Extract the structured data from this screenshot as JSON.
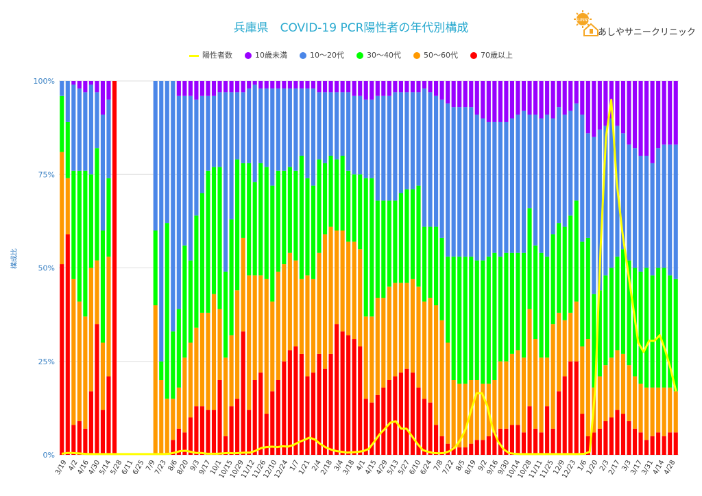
{
  "title": "兵庫県　COVID-19 PCR陽性者の年代別構成",
  "logo": {
    "badge_text": "SUNNY",
    "name": "あしやサニークリニック"
  },
  "legend": [
    {
      "name": "陽性者数",
      "color": "#ffff00",
      "kind": "line"
    },
    {
      "name": "10歳未満",
      "color": "#9900ff",
      "kind": "dot"
    },
    {
      "name": "10〜20代",
      "color": "#4a86e8",
      "kind": "dot"
    },
    {
      "name": "30〜40代",
      "color": "#00ff00",
      "kind": "dot"
    },
    {
      "name": "50〜60代",
      "color": "#ff9900",
      "kind": "dot"
    },
    {
      "name": "70歳以上",
      "color": "#ff0000",
      "kind": "dot"
    }
  ],
  "chart_data": {
    "type": "bar",
    "stacked": true,
    "ylabel": "構成比",
    "y_ticks": [
      "0%",
      "25%",
      "50%",
      "75%",
      "100%"
    ],
    "ylim": [
      0,
      100
    ],
    "grid": true,
    "legend_position": "top",
    "x_tick_labels": [
      "3/19",
      "4/2",
      "4/16",
      "4/30",
      "5/14",
      "5/28",
      "6/11",
      "6/25",
      "7/9",
      "7/23",
      "8/6",
      "8/20",
      "9/3",
      "9/17",
      "10/1",
      "10/15",
      "10/29",
      "11/12",
      "11/26",
      "12/10",
      "12/24",
      "1/7",
      "1/21",
      "2/4",
      "2/18",
      "3/4",
      "3/18",
      "4/1",
      "4/15",
      "4/29",
      "5/13",
      "5/27",
      "6/10",
      "6/24",
      "7/8",
      "7/22",
      "8/5",
      "8/19",
      "9/2",
      "9/16",
      "9/30",
      "10/14",
      "10/28",
      "11/11",
      "11/25",
      "12/9",
      "12/23",
      "1/6",
      "1/20",
      "2/3",
      "2/17",
      "3/3",
      "3/17",
      "3/31",
      "4/14",
      "4/28"
    ],
    "series_order": [
      "70歳以上",
      "50〜60代",
      "30〜40代",
      "10〜20代",
      "10歳未満"
    ],
    "series_colors": [
      "#ff0000",
      "#ff9900",
      "#00ff00",
      "#4a86e8",
      "#9900ff"
    ],
    "bars": [
      [
        51,
        30,
        15,
        4,
        0
      ],
      [
        59,
        15,
        15,
        11,
        0
      ],
      [
        8,
        39,
        29,
        23,
        1
      ],
      [
        9,
        32,
        35,
        22,
        2
      ],
      [
        7,
        30,
        39,
        21,
        3
      ],
      [
        17,
        33,
        25,
        24,
        1
      ],
      [
        35,
        17,
        30,
        15,
        3
      ],
      [
        12,
        18,
        30,
        31,
        9
      ],
      [
        21,
        32,
        21,
        21,
        5
      ],
      [
        100,
        0,
        0,
        0,
        0
      ],
      [
        0,
        0,
        0,
        0,
        0
      ],
      [
        0,
        0,
        0,
        0,
        0
      ],
      [
        0,
        0,
        0,
        0,
        0
      ],
      [
        0,
        0,
        0,
        0,
        0
      ],
      [
        0,
        0,
        0,
        0,
        0
      ],
      [
        0,
        0,
        0,
        0,
        0
      ],
      [
        0,
        40,
        20,
        40,
        0
      ],
      [
        0,
        20,
        5,
        75,
        0
      ],
      [
        0,
        15,
        47,
        38,
        0
      ],
      [
        4,
        11,
        18,
        67,
        0
      ],
      [
        7,
        11,
        21,
        57,
        4
      ],
      [
        6,
        20,
        30,
        40,
        4
      ],
      [
        10,
        20,
        22,
        44,
        4
      ],
      [
        13,
        21,
        30,
        31,
        5
      ],
      [
        13,
        25,
        32,
        26,
        4
      ],
      [
        12,
        26,
        38,
        20,
        4
      ],
      [
        12,
        31,
        34,
        19,
        4
      ],
      [
        20,
        19,
        38,
        20,
        3
      ],
      [
        5,
        21,
        23,
        48,
        3
      ],
      [
        13,
        19,
        31,
        34,
        3
      ],
      [
        15,
        29,
        35,
        18,
        3
      ],
      [
        33,
        25,
        20,
        19,
        3
      ],
      [
        12,
        36,
        30,
        20,
        2
      ],
      [
        20,
        28,
        25,
        26,
        1
      ],
      [
        22,
        26,
        30,
        20,
        2
      ],
      [
        11,
        36,
        30,
        21,
        2
      ],
      [
        17,
        24,
        31,
        26,
        2
      ],
      [
        20,
        29,
        27,
        22,
        2
      ],
      [
        25,
        26,
        25,
        22,
        2
      ],
      [
        28,
        26,
        23,
        21,
        2
      ],
      [
        29,
        23,
        24,
        22,
        2
      ],
      [
        27,
        20,
        33,
        18,
        2
      ],
      [
        21,
        27,
        26,
        24,
        2
      ],
      [
        22,
        25,
        25,
        26,
        2
      ],
      [
        27,
        27,
        25,
        18,
        3
      ],
      [
        23,
        36,
        19,
        19,
        3
      ],
      [
        27,
        34,
        19,
        17,
        3
      ],
      [
        35,
        25,
        19,
        18,
        3
      ],
      [
        33,
        27,
        20,
        17,
        3
      ],
      [
        32,
        25,
        19,
        21,
        3
      ],
      [
        31,
        26,
        18,
        21,
        4
      ],
      [
        29,
        26,
        20,
        21,
        4
      ],
      [
        15,
        22,
        37,
        21,
        5
      ],
      [
        14,
        23,
        37,
        21,
        5
      ],
      [
        16,
        26,
        26,
        28,
        4
      ],
      [
        18,
        24,
        26,
        28,
        4
      ],
      [
        20,
        25,
        23,
        28,
        4
      ],
      [
        21,
        25,
        22,
        29,
        3
      ],
      [
        22,
        24,
        24,
        27,
        3
      ],
      [
        23,
        23,
        25,
        26,
        3
      ],
      [
        22,
        25,
        24,
        26,
        3
      ],
      [
        18,
        27,
        27,
        25,
        3
      ],
      [
        15,
        26,
        20,
        37,
        2
      ],
      [
        14,
        28,
        19,
        36,
        3
      ],
      [
        8,
        32,
        21,
        35,
        4
      ],
      [
        5,
        31,
        22,
        37,
        5
      ],
      [
        3,
        27,
        23,
        41,
        6
      ],
      [
        2,
        18,
        33,
        40,
        7
      ],
      [
        2,
        17,
        34,
        40,
        7
      ],
      [
        2,
        17,
        34,
        40,
        7
      ],
      [
        3,
        17,
        33,
        40,
        7
      ],
      [
        4,
        16,
        32,
        39,
        9
      ],
      [
        4,
        15,
        33,
        38,
        10
      ],
      [
        5,
        14,
        34,
        36,
        11
      ],
      [
        6,
        14,
        34,
        35,
        11
      ],
      [
        7,
        18,
        28,
        36,
        11
      ],
      [
        7,
        18,
        29,
        35,
        11
      ],
      [
        8,
        19,
        27,
        36,
        10
      ],
      [
        8,
        20,
        26,
        37,
        9
      ],
      [
        6,
        20,
        28,
        38,
        8
      ],
      [
        13,
        26,
        27,
        25,
        9
      ],
      [
        7,
        24,
        25,
        35,
        9
      ],
      [
        6,
        20,
        28,
        36,
        10
      ],
      [
        13,
        13,
        27,
        38,
        9
      ],
      [
        7,
        28,
        24,
        31,
        10
      ],
      [
        17,
        21,
        24,
        31,
        7
      ],
      [
        21,
        15,
        25,
        30,
        9
      ],
      [
        25,
        13,
        26,
        28,
        8
      ],
      [
        25,
        16,
        27,
        26,
        6
      ],
      [
        11,
        18,
        28,
        34,
        9
      ],
      [
        5,
        26,
        27,
        28,
        14
      ],
      [
        6,
        12,
        25,
        42,
        15
      ],
      [
        7,
        14,
        23,
        43,
        13
      ],
      [
        9,
        15,
        24,
        40,
        12
      ],
      [
        10,
        16,
        24,
        40,
        10
      ],
      [
        12,
        16,
        25,
        35,
        12
      ],
      [
        11,
        16,
        28,
        31,
        14
      ],
      [
        9,
        15,
        28,
        31,
        17
      ],
      [
        7,
        14,
        29,
        32,
        18
      ],
      [
        6,
        13,
        30,
        31,
        20
      ],
      [
        4,
        14,
        32,
        30,
        20
      ],
      [
        5,
        13,
        30,
        30,
        22
      ],
      [
        6,
        12,
        32,
        32,
        18
      ],
      [
        5,
        13,
        32,
        33,
        17
      ],
      [
        6,
        12,
        30,
        35,
        17
      ],
      [
        6,
        11,
        30,
        36,
        17
      ]
    ],
    "positive_counts_line": [
      0.3,
      0.5,
      0.5,
      0.4,
      0.3,
      0.2,
      0.2,
      0.2,
      0.2,
      0.2,
      0.2,
      0.2,
      0.2,
      0.2,
      0.2,
      0.2,
      0.2,
      0.2,
      0.2,
      0.2,
      0.3,
      0.6,
      1.0,
      1.1,
      0.8,
      0.5,
      0.5,
      0.3,
      0.3,
      0.3,
      0.4,
      0.5,
      0.4,
      0.5,
      0.6,
      0.6,
      1.1,
      1.8,
      2.1,
      2.2,
      2.1,
      2.3,
      2.2,
      2.6,
      3.4,
      4.0,
      4.6,
      4.1,
      2.9,
      2.0,
      1.4,
      1.0,
      0.8,
      0.6,
      0.7,
      0.8,
      1.0,
      1.6,
      3.5,
      5.5,
      7.0,
      8.6,
      9.0,
      7.0,
      7.0,
      5.0,
      3.0,
      1.3,
      0.8,
      0.5,
      0.4,
      0.5,
      1.0,
      2.0,
      4.0,
      7.0,
      12.0,
      16.5,
      16.5,
      13.0,
      7.0,
      3.5,
      1.5,
      0.5,
      0.3,
      0.2,
      0.2,
      0.2,
      0.2,
      0.2,
      0.2,
      0.2,
      0.2,
      0.2,
      0.2,
      0.2,
      0.2,
      0.3,
      0.8,
      17.5,
      55.0,
      85.0,
      95.0,
      73.0,
      60.0,
      50.0,
      40.0,
      30.0,
      27.5,
      30.5,
      30.5,
      32.0,
      28.0,
      23.0,
      17.0
    ]
  }
}
